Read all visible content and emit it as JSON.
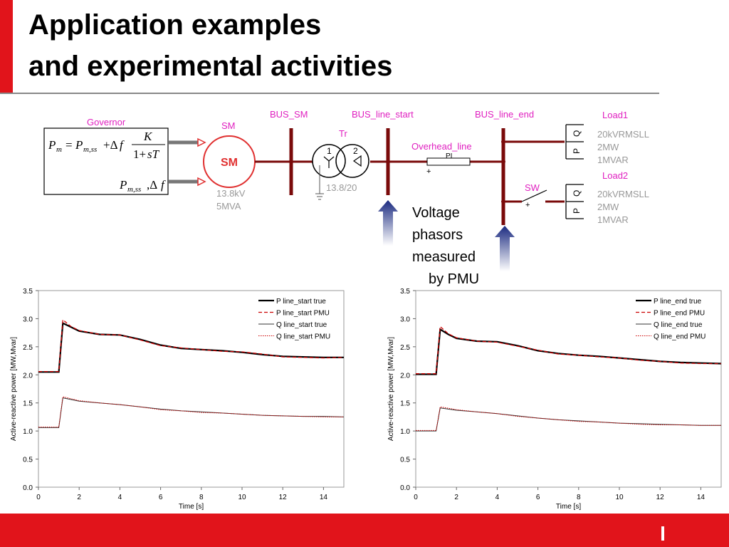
{
  "slide": {
    "title_line1": "Application examples",
    "title_line2": "and experimental activities",
    "accent_color": "#e1141b"
  },
  "diagram": {
    "governor_label": "Governor",
    "governor_eq_lhs": "P",
    "sm_label": "SM",
    "sm_symbol": "SM",
    "sm_rating_kv": "13.8kV",
    "sm_rating_mva": "5MVA",
    "bus_sm": "BUS_SM",
    "bus_line_start": "BUS_line_start",
    "bus_line_end": "BUS_line_end",
    "transformer_label": "Tr",
    "transformer_winding1": "1",
    "transformer_winding2": "2",
    "transformer_ratio": "13.8/20",
    "line_label": "Overhead_line",
    "line_model": "PI",
    "plus": "+",
    "switch_label": "SW",
    "load1_label": "Load1",
    "load2_label": "Load2",
    "load_p": "P",
    "load_q": "Q",
    "load_spec_1": "20kVRMSLL",
    "load_spec_2": "2MW",
    "load_spec_3": "1MVAR",
    "pmu_text": [
      "Voltage",
      "phasors",
      "measured",
      "by PMU"
    ],
    "magenta_color": "#e020c0",
    "bus_color": "#7a0a0a"
  },
  "chart_data": [
    {
      "type": "line",
      "xlabel": "Time [s]",
      "ylabel": "Active-reactive power [MW,Mvar]",
      "xlim": [
        0,
        15
      ],
      "ylim": [
        0,
        3.5
      ],
      "xticks": [
        "0",
        "2",
        "4",
        "6",
        "8",
        "10",
        "12",
        "14"
      ],
      "yticks": [
        "0.0",
        "0.5",
        "1.0",
        "1.5",
        "2.0",
        "2.5",
        "3.0",
        "3.5"
      ],
      "legend_position": "top-right",
      "series": [
        {
          "name": "P line_start true",
          "color": "#000000",
          "style": "solid-thick",
          "points": [
            [
              0,
              2.05
            ],
            [
              1.0,
              2.05
            ],
            [
              1.2,
              2.92
            ],
            [
              1.6,
              2.85
            ],
            [
              2.0,
              2.78
            ],
            [
              3.0,
              2.72
            ],
            [
              4.0,
              2.71
            ],
            [
              5.0,
              2.63
            ],
            [
              6.0,
              2.53
            ],
            [
              7.0,
              2.47
            ],
            [
              8.0,
              2.45
            ],
            [
              9.0,
              2.43
            ],
            [
              10.0,
              2.4
            ],
            [
              11.0,
              2.36
            ],
            [
              12.0,
              2.33
            ],
            [
              13.0,
              2.32
            ],
            [
              14.0,
              2.31
            ],
            [
              15.0,
              2.31
            ]
          ]
        },
        {
          "name": "P line_start PMU",
          "color": "#cc0000",
          "style": "dashed",
          "points": [
            [
              0,
              2.06
            ],
            [
              1.0,
              2.06
            ],
            [
              1.2,
              2.98
            ],
            [
              1.6,
              2.86
            ],
            [
              2.0,
              2.79
            ],
            [
              3.0,
              2.72
            ],
            [
              4.0,
              2.71
            ],
            [
              5.0,
              2.62
            ],
            [
              6.0,
              2.52
            ],
            [
              7.0,
              2.48
            ],
            [
              8.0,
              2.45
            ],
            [
              9.0,
              2.42
            ],
            [
              10.0,
              2.41
            ],
            [
              11.0,
              2.37
            ],
            [
              12.0,
              2.32
            ],
            [
              13.0,
              2.31
            ],
            [
              14.0,
              2.3
            ],
            [
              15.0,
              2.31
            ]
          ]
        },
        {
          "name": "Q line_start true",
          "color": "#333333",
          "style": "solid-thin",
          "points": [
            [
              0,
              1.06
            ],
            [
              1.0,
              1.06
            ],
            [
              1.2,
              1.59
            ],
            [
              2.0,
              1.53
            ],
            [
              3.0,
              1.5
            ],
            [
              4.0,
              1.47
            ],
            [
              5.0,
              1.43
            ],
            [
              6.0,
              1.39
            ],
            [
              7.0,
              1.36
            ],
            [
              8.0,
              1.34
            ],
            [
              9.0,
              1.32
            ],
            [
              10.0,
              1.3
            ],
            [
              11.0,
              1.28
            ],
            [
              12.0,
              1.27
            ],
            [
              13.0,
              1.26
            ],
            [
              14.0,
              1.26
            ],
            [
              15.0,
              1.25
            ]
          ]
        },
        {
          "name": "Q line_start PMU",
          "color": "#cc0000",
          "style": "dotted",
          "points": [
            [
              0,
              1.07
            ],
            [
              1.0,
              1.07
            ],
            [
              1.2,
              1.61
            ],
            [
              2.0,
              1.54
            ],
            [
              3.0,
              1.5
            ],
            [
              4.0,
              1.47
            ],
            [
              5.0,
              1.43
            ],
            [
              6.0,
              1.38
            ],
            [
              7.0,
              1.36
            ],
            [
              8.0,
              1.33
            ],
            [
              9.0,
              1.32
            ],
            [
              10.0,
              1.3
            ],
            [
              11.0,
              1.28
            ],
            [
              12.0,
              1.27
            ],
            [
              13.0,
              1.26
            ],
            [
              14.0,
              1.25
            ],
            [
              15.0,
              1.25
            ]
          ]
        }
      ]
    },
    {
      "type": "line",
      "xlabel": "Time [s]",
      "ylabel": "Active-reactive power [MW,Mvar]",
      "xlim": [
        0,
        15
      ],
      "ylim": [
        0,
        3.5
      ],
      "xticks": [
        "0",
        "2",
        "4",
        "6",
        "8",
        "10",
        "12",
        "14"
      ],
      "yticks": [
        "0.0",
        "0.5",
        "1.0",
        "1.5",
        "2.0",
        "2.5",
        "3.0",
        "3.5"
      ],
      "legend_position": "top-right",
      "series": [
        {
          "name": "P line_end true",
          "color": "#000000",
          "style": "solid-thick",
          "points": [
            [
              0,
              2.01
            ],
            [
              1.0,
              2.01
            ],
            [
              1.2,
              2.81
            ],
            [
              1.6,
              2.72
            ],
            [
              2.0,
              2.65
            ],
            [
              3.0,
              2.6
            ],
            [
              4.0,
              2.59
            ],
            [
              5.0,
              2.52
            ],
            [
              6.0,
              2.43
            ],
            [
              7.0,
              2.38
            ],
            [
              8.0,
              2.35
            ],
            [
              9.0,
              2.33
            ],
            [
              10.0,
              2.3
            ],
            [
              11.0,
              2.27
            ],
            [
              12.0,
              2.24
            ],
            [
              13.0,
              2.22
            ],
            [
              14.0,
              2.21
            ],
            [
              15.0,
              2.2
            ]
          ]
        },
        {
          "name": "P line_end PMU",
          "color": "#cc0000",
          "style": "dashed",
          "points": [
            [
              0,
              2.02
            ],
            [
              1.0,
              2.02
            ],
            [
              1.2,
              2.86
            ],
            [
              1.6,
              2.73
            ],
            [
              2.0,
              2.66
            ],
            [
              3.0,
              2.6
            ],
            [
              4.0,
              2.58
            ],
            [
              5.0,
              2.51
            ],
            [
              6.0,
              2.44
            ],
            [
              7.0,
              2.37
            ],
            [
              8.0,
              2.35
            ],
            [
              9.0,
              2.32
            ],
            [
              10.0,
              2.3
            ],
            [
              11.0,
              2.26
            ],
            [
              12.0,
              2.24
            ],
            [
              13.0,
              2.21
            ],
            [
              14.0,
              2.2
            ],
            [
              15.0,
              2.2
            ]
          ]
        },
        {
          "name": "Q line_end true",
          "color": "#333333",
          "style": "solid-thin",
          "points": [
            [
              0,
              1.0
            ],
            [
              1.0,
              1.0
            ],
            [
              1.2,
              1.41
            ],
            [
              2.0,
              1.37
            ],
            [
              3.0,
              1.34
            ],
            [
              4.0,
              1.31
            ],
            [
              5.0,
              1.27
            ],
            [
              6.0,
              1.23
            ],
            [
              7.0,
              1.2
            ],
            [
              8.0,
              1.18
            ],
            [
              9.0,
              1.16
            ],
            [
              10.0,
              1.14
            ],
            [
              11.0,
              1.13
            ],
            [
              12.0,
              1.12
            ],
            [
              13.0,
              1.11
            ],
            [
              14.0,
              1.1
            ],
            [
              15.0,
              1.1
            ]
          ]
        },
        {
          "name": "Q line_end PMU",
          "color": "#cc0000",
          "style": "dotted",
          "points": [
            [
              0,
              1.01
            ],
            [
              1.0,
              1.01
            ],
            [
              1.2,
              1.43
            ],
            [
              2.0,
              1.38
            ],
            [
              3.0,
              1.34
            ],
            [
              4.0,
              1.31
            ],
            [
              5.0,
              1.26
            ],
            [
              6.0,
              1.23
            ],
            [
              7.0,
              1.2
            ],
            [
              8.0,
              1.17
            ],
            [
              9.0,
              1.16
            ],
            [
              10.0,
              1.14
            ],
            [
              11.0,
              1.12
            ],
            [
              12.0,
              1.11
            ],
            [
              13.0,
              1.11
            ],
            [
              14.0,
              1.1
            ],
            [
              15.0,
              1.1
            ]
          ]
        }
      ]
    }
  ]
}
